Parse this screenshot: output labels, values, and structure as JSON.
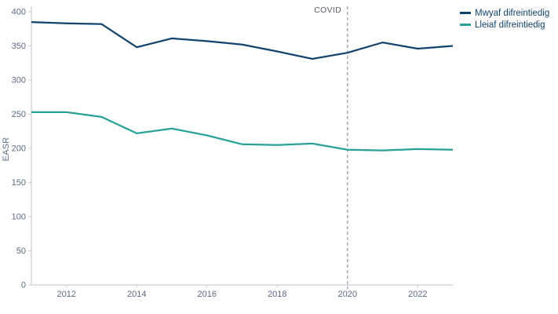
{
  "chart_data": {
    "type": "line",
    "x": [
      2011,
      2012,
      2013,
      2014,
      2015,
      2016,
      2017,
      2018,
      2019,
      2020,
      2021,
      2022,
      2023
    ],
    "series": [
      {
        "name": "Mwyaf difreintiedig",
        "color": "#12436D",
        "values": [
          385,
          383,
          382,
          348,
          361,
          357,
          352,
          342,
          331,
          340,
          355,
          346,
          350
        ]
      },
      {
        "name": "Lleiaf difreintiedig",
        "color": "#28A197",
        "values": [
          253,
          253,
          246,
          222,
          229,
          219,
          206,
          205,
          207,
          198,
          197,
          199,
          198
        ]
      }
    ],
    "title": "",
    "xlabel": "",
    "ylabel": "EASR",
    "ylim": [
      0,
      400
    ],
    "xlim": [
      2011,
      2023
    ],
    "yticks": [
      0,
      50,
      100,
      150,
      200,
      250,
      300,
      350,
      400
    ],
    "xticks": [
      2012,
      2014,
      2016,
      2018,
      2020,
      2022
    ],
    "grid": false,
    "legend_position": "top-right",
    "annotation": {
      "label": "COVID",
      "x": 2020,
      "style": "dashed-vertical-line"
    }
  },
  "colors": {
    "axis_line": "#c9ced6",
    "tick_text": "#5a6b87",
    "annotation_line": "#9aa0a6",
    "annotation_text": "#595f66",
    "legend_text": "#12436D",
    "background": "#ffffff"
  }
}
